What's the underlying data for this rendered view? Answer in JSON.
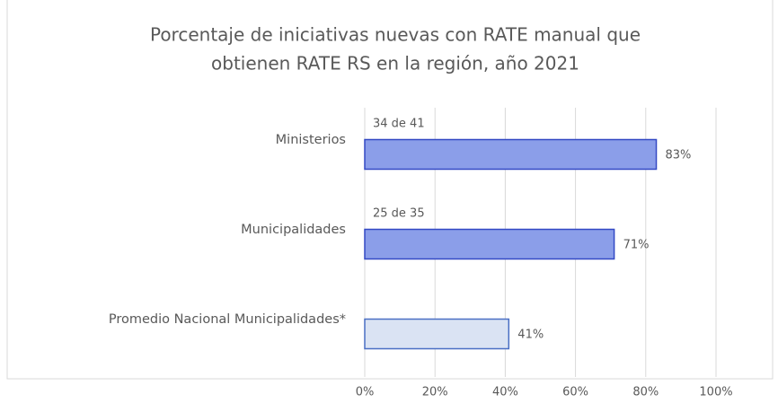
{
  "chart_data": {
    "type": "hbar",
    "title": [
      "Porcentaje de iniciativas nuevas con RATE manual que",
      "obtienen RATE RS en la región, año  2021"
    ],
    "categories": [
      "Ministerios",
      "Municipalidades",
      "Promedio Nacional Municipalidades*"
    ],
    "values": [
      83,
      71,
      41
    ],
    "value_labels": [
      "83%",
      "71%",
      "41%"
    ],
    "annotations": [
      "34 de 41",
      "25 de 35"
    ],
    "colors": [
      "#8b9ee9",
      "#8b9ee9",
      "#dae3f3"
    ],
    "edge_colors": [
      "#3349c4",
      "#3349c4",
      "#4a6fc4"
    ],
    "xlim": [
      0,
      100
    ],
    "xticks": [
      {
        "value": 0,
        "label": "0%"
      },
      {
        "value": 20,
        "label": "20%"
      },
      {
        "value": 40,
        "label": "40%"
      },
      {
        "value": 60,
        "label": "60%"
      },
      {
        "value": 80,
        "label": "80%"
      },
      {
        "value": 100,
        "label": "100%"
      }
    ],
    "grid": true
  }
}
